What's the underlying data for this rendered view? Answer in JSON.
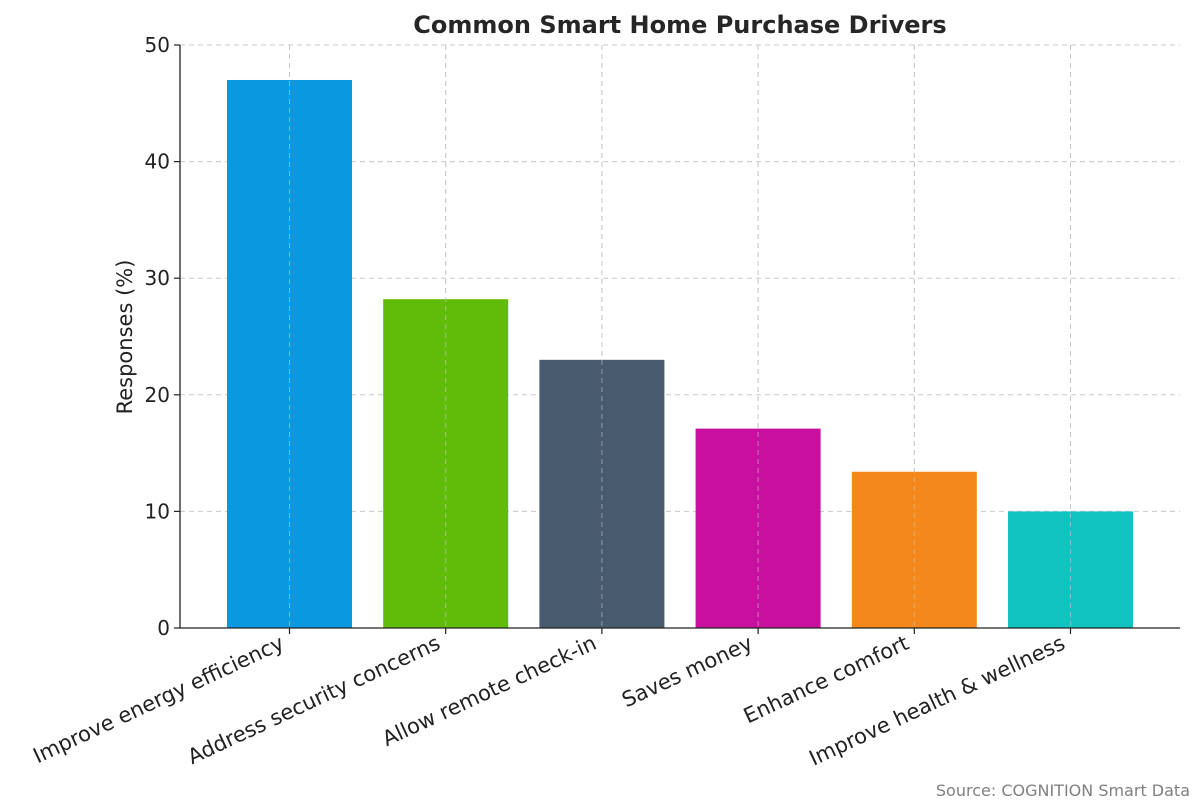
{
  "chart_data": {
    "type": "bar",
    "title": "Common Smart Home Purchase Drivers",
    "xlabel": "",
    "ylabel": "Responses (%)",
    "categories": [
      "Improve energy efficiency",
      "Address security concerns",
      "Allow remote check-in",
      "Saves money",
      "Enhance comfort",
      "Improve health & wellness"
    ],
    "values": [
      47,
      28.2,
      23,
      17.1,
      13.4,
      10
    ],
    "colors": [
      "#0a98e0",
      "#60bc08",
      "#485b6e",
      "#c90f9f",
      "#f5881a",
      "#10c3c0"
    ],
    "ylim": [
      0,
      50
    ],
    "yticks": [
      0,
      10,
      20,
      30,
      40,
      50
    ],
    "grid": true,
    "source": "Source: COGNITION Smart Data"
  }
}
